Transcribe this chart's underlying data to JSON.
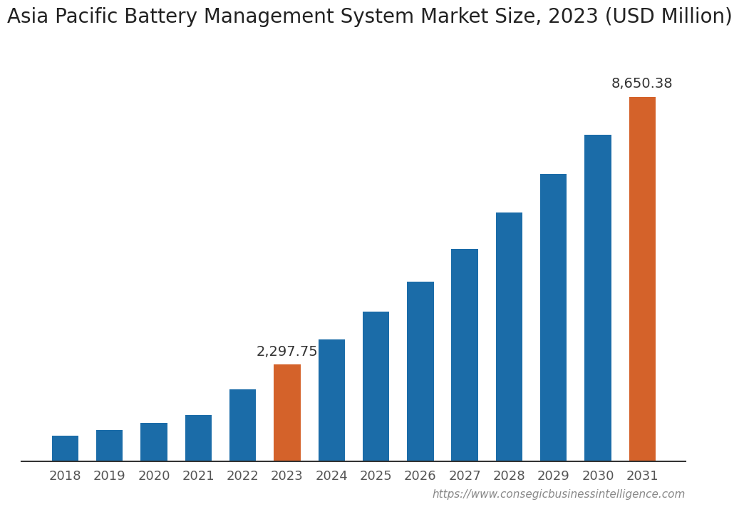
{
  "title": "Asia Pacific Battery Management System Market Size, 2023 (USD Million)",
  "categories": [
    "2018",
    "2019",
    "2020",
    "2021",
    "2022",
    "2023",
    "2024",
    "2025",
    "2026",
    "2027",
    "2028",
    "2029",
    "2030",
    "2031"
  ],
  "values": [
    620,
    750,
    920,
    1100,
    1720,
    2297.75,
    2900,
    3550,
    4270,
    5050,
    5900,
    6820,
    7750,
    8650.38
  ],
  "bar_colors": [
    "#1b6ca8",
    "#1b6ca8",
    "#1b6ca8",
    "#1b6ca8",
    "#1b6ca8",
    "#d4622a",
    "#1b6ca8",
    "#1b6ca8",
    "#1b6ca8",
    "#1b6ca8",
    "#1b6ca8",
    "#1b6ca8",
    "#1b6ca8",
    "#d4622a"
  ],
  "annotated_bars": [
    5,
    13
  ],
  "annotations": [
    "2,297.75",
    "8,650.38"
  ],
  "background_color": "#ffffff",
  "title_fontsize": 20,
  "tick_fontsize": 13,
  "annotation_fontsize": 14,
  "ylim": [
    0,
    10000
  ],
  "url_text": "https://www.consegicbusinessintelligence.com",
  "url_fontsize": 11
}
